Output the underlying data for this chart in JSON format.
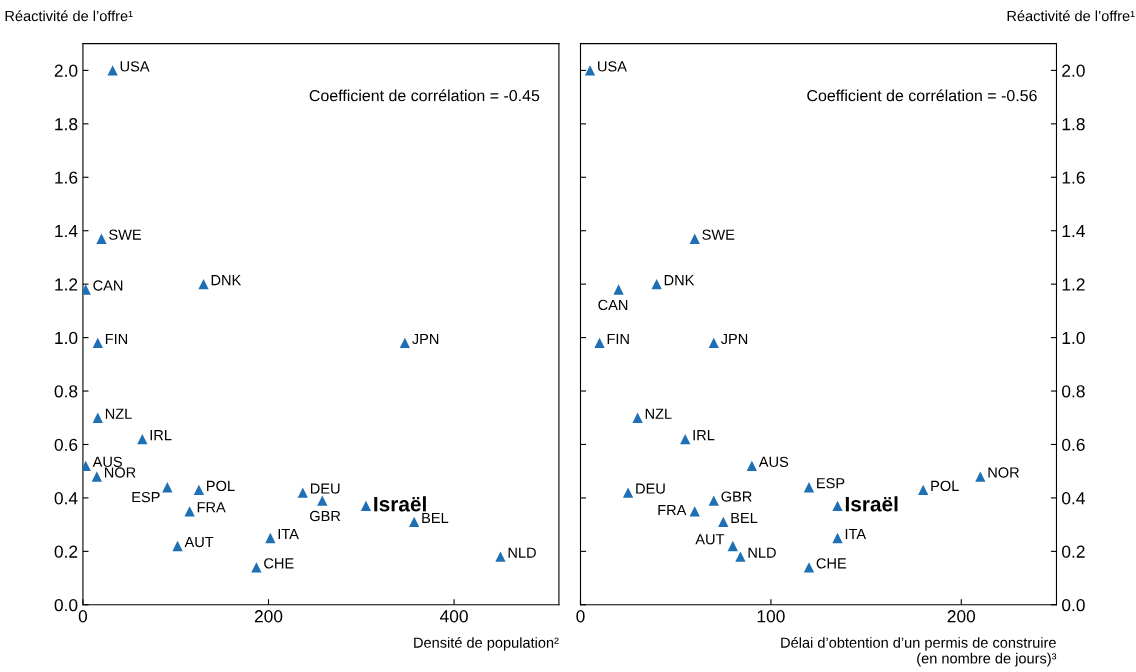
{
  "chart_data": [
    {
      "type": "scatter",
      "xlabel": "Densité de population²",
      "ylabel": "Réactivité de l’offre¹",
      "xlim": [
        0,
        513
      ],
      "xticks": [
        0,
        200,
        400
      ],
      "ylim": [
        0,
        2.1
      ],
      "yticks": [
        {
          "value": 0,
          "label": "0.0"
        },
        {
          "value": 0.2,
          "label": "0.2"
        },
        {
          "value": 0.4,
          "label": "0.4"
        },
        {
          "value": 0.6,
          "label": "0.6"
        },
        {
          "value": 0.8,
          "label": "0.8"
        },
        {
          "value": 1,
          "label": "1.0"
        },
        {
          "value": 1.2,
          "label": "1.2"
        },
        {
          "value": 1.4,
          "label": "1.4"
        },
        {
          "value": 1.6,
          "label": "1.6"
        },
        {
          "value": 1.8,
          "label": "1.8"
        },
        {
          "value": 2,
          "label": "2.0"
        }
      ],
      "marker": "triangle",
      "grid": false,
      "legend": false,
      "series": [
        {
          "color": "#1f6fb5",
          "x": [
            32,
            20,
            3,
            130,
            16,
            347,
            16,
            64,
            3,
            15,
            91,
            125,
            115,
            102,
            237,
            258,
            305,
            357,
            202,
            187,
            450
          ],
          "values": [
            2.0,
            1.37,
            1.18,
            1.2,
            0.98,
            0.98,
            0.7,
            0.62,
            0.52,
            0.48,
            0.44,
            0.43,
            0.35,
            0.22,
            0.42,
            0.39,
            0.37,
            0.31,
            0.25,
            0.14,
            0.18
          ]
        }
      ],
      "annotations": [
        "Coefficient de corrélation = -0.45",
        {
          "text": "USA",
          "x": 32,
          "y": 2.0
        },
        {
          "text": "SWE",
          "x": 20,
          "y": 1.37
        },
        {
          "text": "CAN",
          "x": 3,
          "y": 1.18
        },
        {
          "text": "DNK",
          "x": 130,
          "y": 1.2
        },
        {
          "text": "FIN",
          "x": 16,
          "y": 0.98
        },
        {
          "text": "JPN",
          "x": 347,
          "y": 0.98
        },
        {
          "text": "NZL",
          "x": 16,
          "y": 0.7
        },
        {
          "text": "IRL",
          "x": 64,
          "y": 0.62
        },
        {
          "text": "AUS",
          "x": 3,
          "y": 0.52
        },
        {
          "text": "NOR",
          "x": 15,
          "y": 0.48
        },
        {
          "text": "ESP",
          "x": 91,
          "y": 0.44
        },
        {
          "text": "POL",
          "x": 125,
          "y": 0.43
        },
        {
          "text": "FRA",
          "x": 115,
          "y": 0.35
        },
        {
          "text": "AUT",
          "x": 102,
          "y": 0.22
        },
        {
          "text": "DEU",
          "x": 237,
          "y": 0.42
        },
        {
          "text": "GBR",
          "x": 258,
          "y": 0.39
        },
        {
          "text": "Israël",
          "x": 305,
          "y": 0.37
        },
        {
          "text": "BEL",
          "x": 357,
          "y": 0.31
        },
        {
          "text": "ITA",
          "x": 202,
          "y": 0.25
        },
        {
          "text": "CHE",
          "x": 187,
          "y": 0.14
        },
        {
          "text": "NLD",
          "x": 450,
          "y": 0.18
        }
      ]
    },
    {
      "type": "scatter",
      "xlabel": "Délai d’obtention d’un permis de construire\n(en nombre de jours)³",
      "ylabel": "Réactivité de l’offre¹",
      "xlim": [
        0,
        250
      ],
      "xticks": [
        0,
        100,
        200
      ],
      "ylim": [
        0,
        2.1
      ],
      "yticks": [
        {
          "value": 0,
          "label": "0.0"
        },
        {
          "value": 0.2,
          "label": "0.2"
        },
        {
          "value": 0.4,
          "label": "0.4"
        },
        {
          "value": 0.6,
          "label": "0.6"
        },
        {
          "value": 0.8,
          "label": "0.8"
        },
        {
          "value": 1,
          "label": "1.0"
        },
        {
          "value": 1.2,
          "label": "1.2"
        },
        {
          "value": 1.4,
          "label": "1.4"
        },
        {
          "value": 1.6,
          "label": "1.6"
        },
        {
          "value": 1.8,
          "label": "1.8"
        },
        {
          "value": 2,
          "label": "2.0"
        }
      ],
      "marker": "triangle",
      "grid": false,
      "legend": false,
      "series": [
        {
          "color": "#1f6fb5",
          "x": [
            5,
            60,
            20,
            40,
            10,
            70,
            30,
            55,
            90,
            25,
            70,
            120,
            135,
            180,
            210,
            60,
            75,
            80,
            84,
            135,
            120
          ],
          "values": [
            2.0,
            1.37,
            1.18,
            1.2,
            0.98,
            0.98,
            0.7,
            0.62,
            0.52,
            0.42,
            0.39,
            0.44,
            0.37,
            0.43,
            0.48,
            0.35,
            0.31,
            0.22,
            0.18,
            0.25,
            0.14
          ]
        }
      ],
      "annotations": [
        "Coefficient de corrélation = -0.56",
        {
          "text": "USA",
          "x": 5,
          "y": 2.0
        },
        {
          "text": "SWE",
          "x": 60,
          "y": 1.37
        },
        {
          "text": "CAN",
          "x": 20,
          "y": 1.18
        },
        {
          "text": "DNK",
          "x": 40,
          "y": 1.2
        },
        {
          "text": "FIN",
          "x": 10,
          "y": 0.98
        },
        {
          "text": "JPN",
          "x": 70,
          "y": 0.98
        },
        {
          "text": "NZL",
          "x": 30,
          "y": 0.7
        },
        {
          "text": "IRL",
          "x": 55,
          "y": 0.62
        },
        {
          "text": "AUS",
          "x": 90,
          "y": 0.52
        },
        {
          "text": "DEU",
          "x": 25,
          "y": 0.42
        },
        {
          "text": "GBR",
          "x": 70,
          "y": 0.39
        },
        {
          "text": "ESP",
          "x": 120,
          "y": 0.44
        },
        {
          "text": "Israël",
          "x": 135,
          "y": 0.37
        },
        {
          "text": "POL",
          "x": 180,
          "y": 0.43
        },
        {
          "text": "NOR",
          "x": 210,
          "y": 0.48
        },
        {
          "text": "FRA",
          "x": 60,
          "y": 0.35
        },
        {
          "text": "BEL",
          "x": 75,
          "y": 0.31
        },
        {
          "text": "AUT",
          "x": 80,
          "y": 0.22
        },
        {
          "text": "NLD",
          "x": 84,
          "y": 0.18
        },
        {
          "text": "ITA",
          "x": 135,
          "y": 0.25
        },
        {
          "text": "CHE",
          "x": 120,
          "y": 0.14
        }
      ]
    }
  ]
}
